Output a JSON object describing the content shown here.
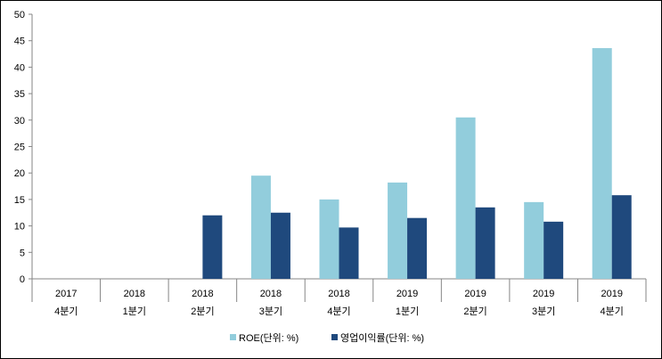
{
  "chart_data": {
    "type": "bar",
    "categories": [
      [
        "2017",
        "4분기"
      ],
      [
        "2018",
        "1분기"
      ],
      [
        "2018",
        "2분기"
      ],
      [
        "2018",
        "3분기"
      ],
      [
        "2018",
        "4분기"
      ],
      [
        "2019",
        "1분기"
      ],
      [
        "2019",
        "2분기"
      ],
      [
        "2019",
        "3분기"
      ],
      [
        "2019",
        "4분기"
      ]
    ],
    "series": [
      {
        "name": "ROE(단위: %)",
        "color": "#92cddc",
        "values": [
          null,
          null,
          null,
          19.5,
          15.0,
          18.2,
          30.5,
          14.5,
          43.6
        ]
      },
      {
        "name": "영업이익률(단위: %)",
        "color": "#1f497d",
        "values": [
          null,
          null,
          12.0,
          12.5,
          9.7,
          11.5,
          13.5,
          10.8,
          15.8
        ]
      }
    ],
    "yticks": [
      "0",
      "5",
      "10",
      "15",
      "20",
      "25",
      "30",
      "35",
      "40",
      "45",
      "50"
    ],
    "ylim": [
      0,
      50
    ],
    "title": "",
    "xlabel": "",
    "ylabel": "",
    "legend_position": "bottom",
    "grid": false
  }
}
